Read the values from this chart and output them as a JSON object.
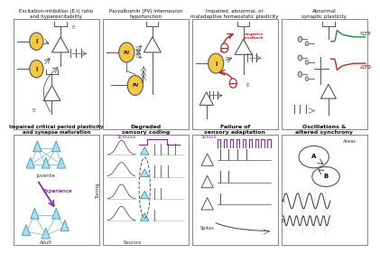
{
  "bg_color": "#ffffff",
  "panel_bg": "#ffffff",
  "border_color": "#888888",
  "panel_titles_top": [
    "Excitation-inhibition (E-I) ratio\nand hyperexcitability",
    "Parvalbumin (PV) interneuron\nhypofunction",
    "Impaired, abnormal, or\nmaladaptive homeostatic plasticity",
    "Abnormal\nsynaptic plasticity"
  ],
  "panel_titles_bot": [
    "Impaired critical period plasticity\nand synapse maturation",
    "Degraded\nsensory coding",
    "Failure of\nsensory adaptation",
    "Oscillations &\naltered synchrony"
  ],
  "circle_fill": "#f5c842",
  "circle_fill2": "#aaddee",
  "red_color": "#cc2222",
  "green_color": "#228844",
  "purple_color": "#8833aa",
  "gray": "#555555",
  "light_gray": "#888888",
  "text_color": "#111111"
}
